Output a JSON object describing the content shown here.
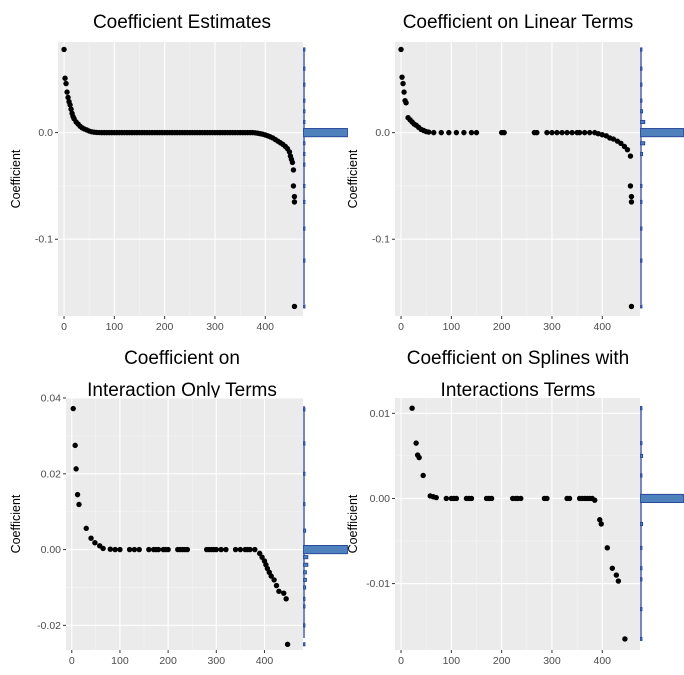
{
  "chart_data": [
    {
      "type": "scatter",
      "title_lines": [
        "Coefficient Estimates"
      ],
      "xlabel": "",
      "ylabel": "Coefficient",
      "xlim": [
        -12,
        475
      ],
      "ylim": [
        -0.172,
        0.085
      ],
      "xticks": [
        0,
        100,
        200,
        300,
        400
      ],
      "yticks": [
        0.0,
        -0.1
      ],
      "ytick_labels": [
        "0.0",
        "-0.1"
      ],
      "grid": true,
      "points": [
        [
          0,
          0.078
        ],
        [
          2,
          0.051
        ],
        [
          4,
          0.046
        ],
        [
          6,
          0.038
        ],
        [
          8,
          0.033
        ],
        [
          10,
          0.029
        ],
        [
          12,
          0.026
        ],
        [
          14,
          0.022
        ],
        [
          16,
          0.018
        ],
        [
          18,
          0.015
        ],
        [
          20,
          0.013
        ],
        [
          24,
          0.01
        ],
        [
          28,
          0.008
        ],
        [
          32,
          0.006
        ],
        [
          36,
          0.0045
        ],
        [
          40,
          0.0035
        ],
        [
          45,
          0.0025
        ],
        [
          50,
          0.0015
        ],
        [
          55,
          0.0008
        ],
        [
          60,
          0.0004
        ],
        [
          65,
          0.0002
        ],
        [
          70,
          0.0001
        ],
        [
          75,
          0
        ],
        [
          80,
          0
        ],
        [
          85,
          0
        ],
        [
          90,
          0
        ],
        [
          95,
          0
        ],
        [
          100,
          0
        ],
        [
          105,
          0
        ],
        [
          110,
          0
        ],
        [
          115,
          0
        ],
        [
          120,
          0
        ],
        [
          125,
          0
        ],
        [
          130,
          0
        ],
        [
          135,
          0
        ],
        [
          140,
          0
        ],
        [
          145,
          0
        ],
        [
          150,
          0
        ],
        [
          155,
          0
        ],
        [
          160,
          0
        ],
        [
          165,
          0
        ],
        [
          170,
          0
        ],
        [
          175,
          0
        ],
        [
          180,
          0
        ],
        [
          185,
          0
        ],
        [
          190,
          0
        ],
        [
          195,
          0
        ],
        [
          200,
          0
        ],
        [
          205,
          0
        ],
        [
          210,
          0
        ],
        [
          215,
          0
        ],
        [
          220,
          0
        ],
        [
          225,
          0
        ],
        [
          230,
          0
        ],
        [
          235,
          0
        ],
        [
          240,
          0
        ],
        [
          245,
          0
        ],
        [
          250,
          0
        ],
        [
          255,
          0
        ],
        [
          260,
          0
        ],
        [
          265,
          0
        ],
        [
          270,
          0
        ],
        [
          275,
          0
        ],
        [
          280,
          0
        ],
        [
          285,
          0
        ],
        [
          290,
          0
        ],
        [
          295,
          0
        ],
        [
          300,
          0
        ],
        [
          305,
          0
        ],
        [
          310,
          0
        ],
        [
          315,
          0
        ],
        [
          320,
          0
        ],
        [
          325,
          0
        ],
        [
          330,
          0
        ],
        [
          335,
          0
        ],
        [
          340,
          0
        ],
        [
          345,
          0
        ],
        [
          350,
          0
        ],
        [
          355,
          0
        ],
        [
          360,
          0
        ],
        [
          365,
          0
        ],
        [
          370,
          0
        ],
        [
          375,
          0
        ],
        [
          380,
          -0.0002
        ],
        [
          385,
          -0.0005
        ],
        [
          390,
          -0.001
        ],
        [
          395,
          -0.0015
        ],
        [
          400,
          -0.0022
        ],
        [
          405,
          -0.003
        ],
        [
          410,
          -0.004
        ],
        [
          415,
          -0.005
        ],
        [
          420,
          -0.0065
        ],
        [
          425,
          -0.008
        ],
        [
          430,
          -0.0095
        ],
        [
          435,
          -0.011
        ],
        [
          440,
          -0.013
        ],
        [
          444,
          -0.015
        ],
        [
          448,
          -0.018
        ],
        [
          450,
          -0.022
        ],
        [
          452,
          -0.025
        ],
        [
          454,
          -0.028
        ],
        [
          456,
          -0.035
        ],
        [
          456,
          -0.05
        ],
        [
          458,
          -0.06
        ],
        [
          458,
          -0.065
        ],
        [
          458,
          -0.163
        ]
      ],
      "marginal_histogram": {
        "y_centers": [
          -0.163,
          -0.12,
          -0.09,
          -0.065,
          -0.05,
          -0.03,
          -0.02,
          -0.01,
          0.0,
          0.01,
          0.02,
          0.03,
          0.045,
          0.06,
          0.078
        ],
        "counts": [
          1,
          0.5,
          0.5,
          1,
          1,
          1,
          2,
          6,
          330,
          6,
          3,
          2,
          1,
          1,
          1
        ]
      }
    },
    {
      "type": "scatter",
      "title_lines": [
        "Coefficient on Linear Terms"
      ],
      "xlabel": "",
      "ylabel": "Coefficient",
      "xlim": [
        -12,
        475
      ],
      "ylim": [
        -0.172,
        0.085
      ],
      "xticks": [
        0,
        100,
        200,
        300,
        400
      ],
      "yticks": [
        0.0,
        -0.1
      ],
      "ytick_labels": [
        "0.0",
        "-0.1"
      ],
      "grid": true,
      "points": [
        [
          0,
          0.078
        ],
        [
          2,
          0.052
        ],
        [
          4,
          0.046
        ],
        [
          6,
          0.038
        ],
        [
          8,
          0.03
        ],
        [
          10,
          0.028
        ],
        [
          14,
          0.014
        ],
        [
          18,
          0.012
        ],
        [
          22,
          0.01
        ],
        [
          26,
          0.008
        ],
        [
          30,
          0.007
        ],
        [
          35,
          0.005
        ],
        [
          40,
          0.003
        ],
        [
          45,
          0.002
        ],
        [
          50,
          0.001
        ],
        [
          55,
          0.0005
        ],
        [
          65,
          0
        ],
        [
          80,
          0
        ],
        [
          95,
          0
        ],
        [
          110,
          0
        ],
        [
          125,
          0
        ],
        [
          140,
          0
        ],
        [
          150,
          0
        ],
        [
          200,
          0
        ],
        [
          205,
          0
        ],
        [
          265,
          0
        ],
        [
          270,
          0
        ],
        [
          290,
          0
        ],
        [
          300,
          0
        ],
        [
          310,
          0
        ],
        [
          320,
          0
        ],
        [
          330,
          0
        ],
        [
          340,
          0
        ],
        [
          350,
          0
        ],
        [
          355,
          0
        ],
        [
          365,
          0
        ],
        [
          375,
          0
        ],
        [
          385,
          0
        ],
        [
          392,
          -0.001
        ],
        [
          400,
          -0.002
        ],
        [
          408,
          -0.003
        ],
        [
          415,
          -0.005
        ],
        [
          422,
          -0.006
        ],
        [
          430,
          -0.008
        ],
        [
          437,
          -0.01
        ],
        [
          444,
          -0.013
        ],
        [
          450,
          -0.016
        ],
        [
          456,
          -0.022
        ],
        [
          456,
          -0.05
        ],
        [
          458,
          -0.06
        ],
        [
          458,
          -0.065
        ],
        [
          458,
          -0.163
        ]
      ],
      "marginal_histogram": {
        "y_centers": [
          -0.163,
          -0.12,
          -0.09,
          -0.065,
          -0.05,
          -0.02,
          -0.01,
          0.0,
          0.01,
          0.02,
          0.03,
          0.045,
          0.06,
          0.078
        ],
        "counts": [
          1,
          0.5,
          0.5,
          1,
          1,
          2,
          4,
          40,
          4,
          2,
          1,
          1,
          1,
          1
        ]
      }
    },
    {
      "type": "scatter",
      "title_lines": [
        "Coefficient on",
        "Interaction Only Terms"
      ],
      "xlabel": "",
      "ylabel": "Coefficient",
      "xlim": [
        -12,
        480
      ],
      "ylim": [
        -0.0265,
        0.04
      ],
      "xticks": [
        0,
        100,
        200,
        300,
        400
      ],
      "yticks": [
        0.04,
        0.02,
        0.0,
        -0.02
      ],
      "ytick_labels": [
        "0.04",
        "0.02",
        "0.00",
        "-0.02"
      ],
      "grid": true,
      "points": [
        [
          3,
          0.0372
        ],
        [
          7,
          0.0275
        ],
        [
          9,
          0.0213
        ],
        [
          12,
          0.0145
        ],
        [
          15,
          0.0119
        ],
        [
          30,
          0.0056
        ],
        [
          40,
          0.003
        ],
        [
          48,
          0.0018
        ],
        [
          58,
          0.001
        ],
        [
          65,
          0.0003
        ],
        [
          80,
          0.0001
        ],
        [
          90,
          0
        ],
        [
          100,
          0
        ],
        [
          120,
          0
        ],
        [
          130,
          0
        ],
        [
          140,
          0
        ],
        [
          160,
          0
        ],
        [
          170,
          0
        ],
        [
          175,
          0
        ],
        [
          180,
          0
        ],
        [
          190,
          0
        ],
        [
          195,
          0
        ],
        [
          200,
          0
        ],
        [
          220,
          0
        ],
        [
          225,
          0
        ],
        [
          230,
          0
        ],
        [
          235,
          0
        ],
        [
          240,
          0
        ],
        [
          280,
          0
        ],
        [
          285,
          0
        ],
        [
          290,
          0
        ],
        [
          295,
          0
        ],
        [
          300,
          0
        ],
        [
          310,
          0
        ],
        [
          320,
          0
        ],
        [
          340,
          0
        ],
        [
          350,
          0
        ],
        [
          360,
          0
        ],
        [
          365,
          0
        ],
        [
          370,
          0
        ],
        [
          380,
          0
        ],
        [
          390,
          -0.001
        ],
        [
          395,
          -0.002
        ],
        [
          400,
          -0.003
        ],
        [
          403,
          -0.004
        ],
        [
          406,
          -0.005
        ],
        [
          410,
          -0.006
        ],
        [
          414,
          -0.007
        ],
        [
          420,
          -0.008
        ],
        [
          425,
          -0.0095
        ],
        [
          430,
          -0.011
        ],
        [
          440,
          -0.0115
        ],
        [
          445,
          -0.013
        ],
        [
          448,
          -0.025
        ]
      ],
      "marginal_histogram": {
        "y_centers": [
          -0.025,
          -0.02,
          -0.015,
          -0.013,
          -0.01,
          -0.008,
          -0.006,
          -0.004,
          -0.002,
          0.0,
          0.005,
          0.012,
          0.02,
          0.028,
          0.037
        ],
        "counts": [
          1,
          0.5,
          0.5,
          1,
          1.5,
          2,
          2,
          3,
          3,
          30,
          1.5,
          1,
          1,
          1,
          1
        ]
      }
    },
    {
      "type": "scatter",
      "title_lines": [
        "Coefficient on Splines with",
        "Interactions Terms"
      ],
      "xlabel": "",
      "ylabel": "Coefficient",
      "xlim": [
        -12,
        475
      ],
      "ylim": [
        -0.0178,
        0.0118
      ],
      "xticks": [
        0,
        100,
        200,
        300,
        400
      ],
      "yticks": [
        0.01,
        0.0,
        -0.01
      ],
      "ytick_labels": [
        "0.01",
        "0.00",
        "-0.01"
      ],
      "grid": true,
      "points": [
        [
          22,
          0.0106
        ],
        [
          30,
          0.0065
        ],
        [
          33,
          0.0051
        ],
        [
          36,
          0.0048
        ],
        [
          44,
          0.0027
        ],
        [
          58,
          0.0003
        ],
        [
          64,
          0.0002
        ],
        [
          70,
          0.0001
        ],
        [
          90,
          0
        ],
        [
          100,
          0
        ],
        [
          105,
          0
        ],
        [
          110,
          0
        ],
        [
          130,
          0
        ],
        [
          135,
          0
        ],
        [
          140,
          0
        ],
        [
          170,
          0
        ],
        [
          175,
          0
        ],
        [
          180,
          0
        ],
        [
          222,
          0
        ],
        [
          228,
          0
        ],
        [
          232,
          0
        ],
        [
          238,
          0
        ],
        [
          285,
          0
        ],
        [
          290,
          0
        ],
        [
          330,
          0
        ],
        [
          335,
          0
        ],
        [
          355,
          0
        ],
        [
          360,
          0
        ],
        [
          365,
          0
        ],
        [
          370,
          0
        ],
        [
          375,
          0
        ],
        [
          380,
          0
        ],
        [
          385,
          -0.0002
        ],
        [
          395,
          -0.0025
        ],
        [
          398,
          -0.003
        ],
        [
          410,
          -0.0058
        ],
        [
          420,
          -0.0082
        ],
        [
          428,
          -0.009
        ],
        [
          432,
          -0.0097
        ],
        [
          445,
          -0.0165
        ]
      ],
      "marginal_histogram": {
        "y_centers": [
          -0.0165,
          -0.013,
          -0.0095,
          -0.0082,
          -0.0058,
          -0.003,
          0.0,
          0.0027,
          0.005,
          0.0065,
          0.0106
        ],
        "counts": [
          1,
          0.5,
          1,
          1,
          1,
          1.5,
          30,
          1,
          1.5,
          1,
          1
        ]
      }
    }
  ],
  "style": {
    "panel_bg": "#ebebeb",
    "grid_color": "#ffffff",
    "point_color": "#000000",
    "hist_fill": "#4f81bd",
    "hist_edge": "#1f3a93"
  }
}
